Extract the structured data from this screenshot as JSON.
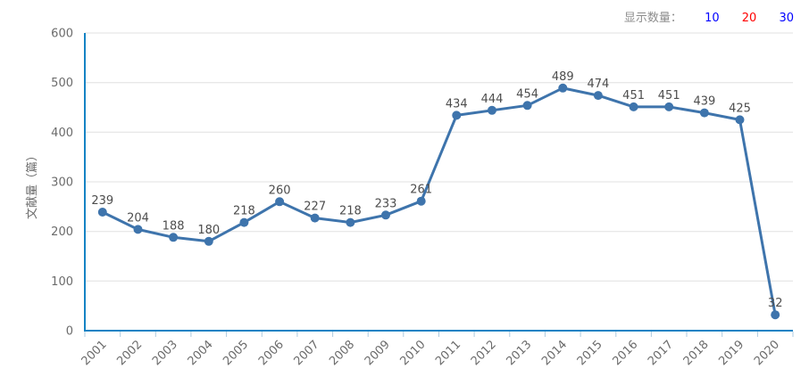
{
  "display_control": {
    "label": "显示数量：",
    "options": [
      {
        "label": "10",
        "color": "#0000ff",
        "active": false
      },
      {
        "label": "20",
        "color": "#ff0000",
        "active": true
      },
      {
        "label": "30",
        "color": "#0000ff",
        "active": false
      }
    ]
  },
  "chart_data": {
    "type": "line",
    "title": "",
    "xlabel": "",
    "ylabel": "文献量（篇）",
    "categories": [
      "2001",
      "2002",
      "2003",
      "2004",
      "2005",
      "2006",
      "2007",
      "2008",
      "2009",
      "2010",
      "2011",
      "2012",
      "2013",
      "2014",
      "2015",
      "2016",
      "2017",
      "2018",
      "2019",
      "2020"
    ],
    "values": [
      239,
      204,
      188,
      180,
      218,
      260,
      227,
      218,
      233,
      261,
      434,
      444,
      454,
      489,
      474,
      451,
      451,
      439,
      425,
      32
    ],
    "ylim": [
      0,
      600
    ],
    "ytick_interval": 100,
    "grid": true,
    "legend_position": "none",
    "x_label_rotation": -45,
    "data_labels_visible": true,
    "colors": {
      "series": "#3e74ac",
      "axis": "#1583c4",
      "grid": "#e0e0e0",
      "x_tick": "#aecbe0",
      "tick_label": "#6b6b6b",
      "value_label": "#4d4d4d"
    }
  }
}
